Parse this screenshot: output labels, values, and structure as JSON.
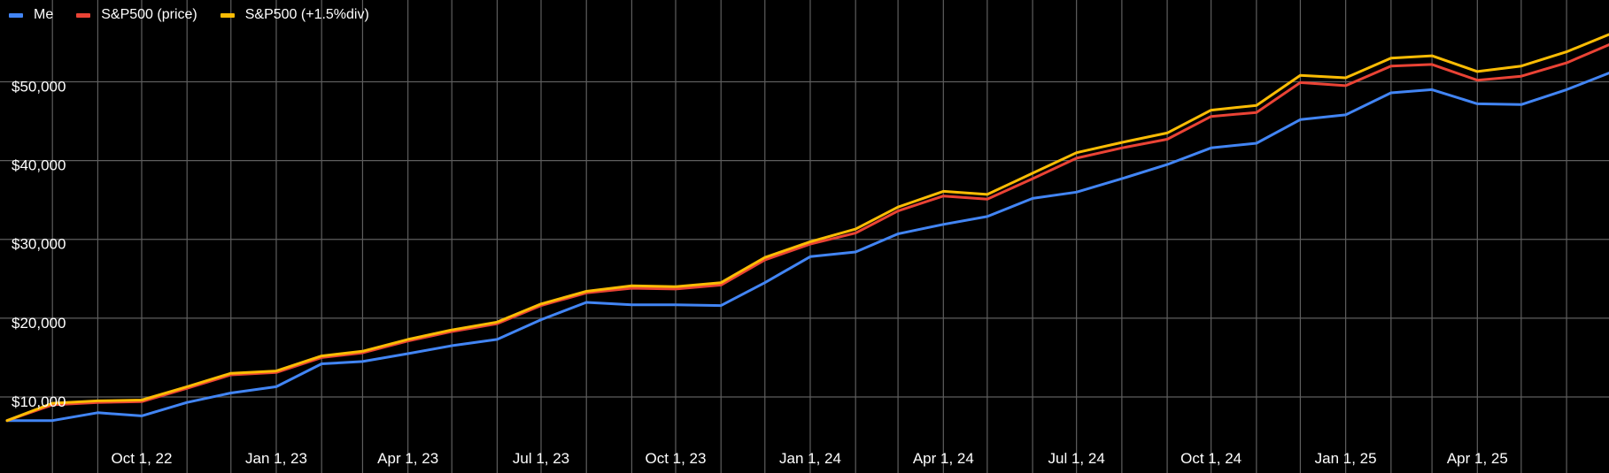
{
  "chart_data": {
    "type": "line",
    "title": "",
    "xlabel": "",
    "ylabel": "",
    "grid": true,
    "legend_position": "top-left",
    "x_range": [
      "2022-07-01",
      "2025-06-30"
    ],
    "ylim": [
      0,
      60000
    ],
    "y_ticks": [
      10000,
      20000,
      30000,
      40000,
      50000
    ],
    "y_tick_labels": [
      "$10,000",
      "$20,000",
      "$30,000",
      "$40,000",
      "$50,000"
    ],
    "x_ticks": [
      "2022-10-01",
      "2023-01-01",
      "2023-04-01",
      "2023-07-01",
      "2023-10-01",
      "2024-01-01",
      "2024-04-01",
      "2024-07-01",
      "2024-10-01",
      "2025-01-01",
      "2025-04-01"
    ],
    "x_tick_labels": [
      "Oct 1, 22",
      "Jan 1, 23",
      "Apr 1, 23",
      "Jul 1, 23",
      "Oct 1, 23",
      "Jan 1, 24",
      "Apr 1, 24",
      "Jul 1, 24",
      "Oct 1, 24",
      "Jan 1, 25",
      "Apr 1, 25"
    ],
    "x": [
      "2022-07-01",
      "2022-08-01",
      "2022-09-01",
      "2022-10-01",
      "2022-11-01",
      "2022-12-01",
      "2023-01-01",
      "2023-02-01",
      "2023-03-01",
      "2023-04-01",
      "2023-05-01",
      "2023-06-01",
      "2023-07-01",
      "2023-08-01",
      "2023-09-01",
      "2023-10-01",
      "2023-11-01",
      "2023-12-01",
      "2024-01-01",
      "2024-02-01",
      "2024-03-01",
      "2024-04-01",
      "2024-05-01",
      "2024-06-01",
      "2024-07-01",
      "2024-08-01",
      "2024-09-01",
      "2024-10-01",
      "2024-11-01",
      "2024-12-01",
      "2025-01-01",
      "2025-02-01",
      "2025-03-01",
      "2025-04-01",
      "2025-05-01",
      "2025-06-01",
      "2025-06-30"
    ],
    "series": [
      {
        "name": "Me",
        "color": "#4285f4",
        "values": [
          7000,
          7000,
          8000,
          7600,
          9300,
          10500,
          11300,
          14200,
          14500,
          15500,
          16500,
          17300,
          19800,
          22000,
          21700,
          21700,
          21600,
          24500,
          27800,
          28400,
          30700,
          31900,
          32900,
          35200,
          36000,
          37700,
          39500,
          41600,
          42200,
          45200,
          45800,
          48600,
          49000,
          47200,
          47100,
          49000,
          51100
        ]
      },
      {
        "name": "S&P500 (price)",
        "color": "#ea4335",
        "values": [
          7000,
          9000,
          9300,
          9400,
          11100,
          12800,
          13100,
          15000,
          15600,
          17100,
          18300,
          19300,
          21600,
          23200,
          23800,
          23700,
          24200,
          27400,
          29400,
          30800,
          33600,
          35500,
          35100,
          37700,
          40300,
          41600,
          42700,
          45600,
          46100,
          49900,
          49500,
          52000,
          52200,
          50200,
          50700,
          52400,
          54700
        ]
      },
      {
        "name": "S&P500 (+1.5%div)",
        "color": "#fbbc04",
        "values": [
          7000,
          9200,
          9500,
          9600,
          11300,
          13000,
          13300,
          15200,
          15800,
          17300,
          18500,
          19500,
          21800,
          23400,
          24100,
          24000,
          24500,
          27700,
          29700,
          31300,
          34100,
          36100,
          35700,
          38400,
          41000,
          42300,
          43500,
          46400,
          47000,
          50800,
          50500,
          53000,
          53300,
          51300,
          52000,
          53800,
          56000
        ]
      }
    ]
  }
}
